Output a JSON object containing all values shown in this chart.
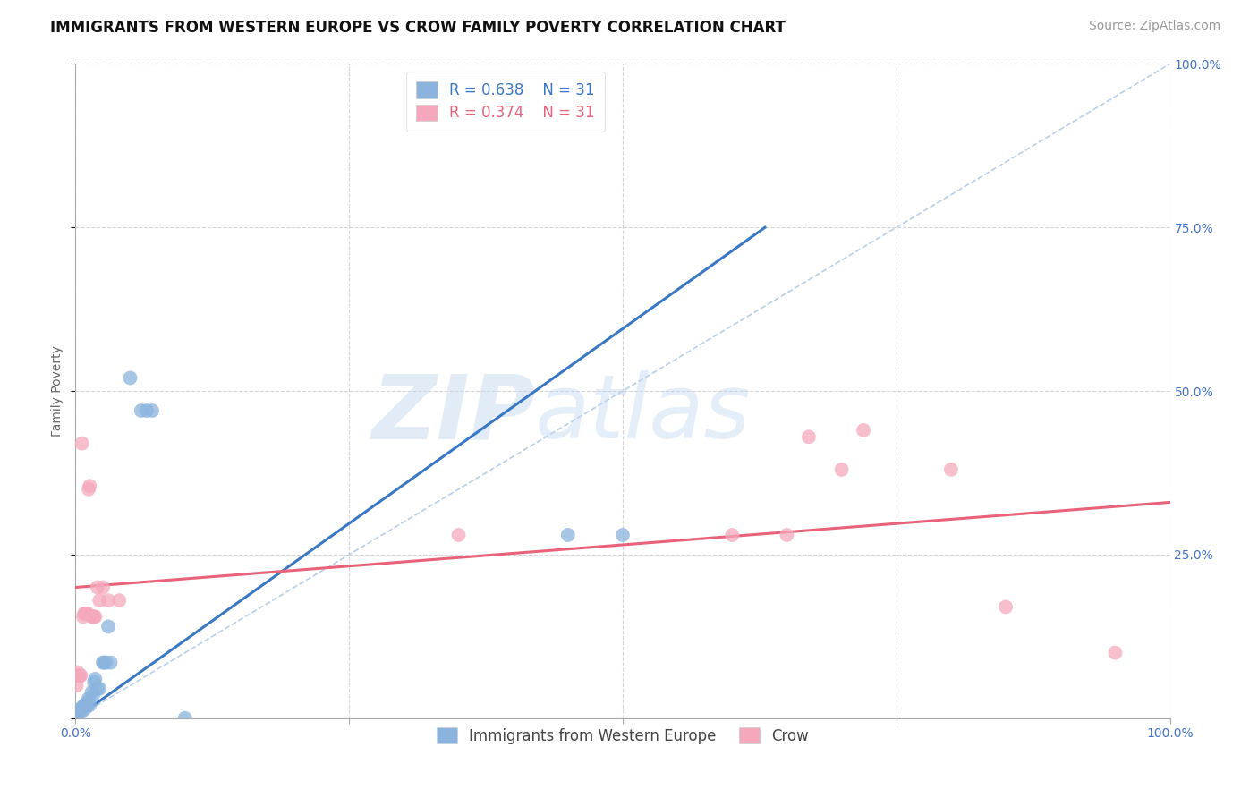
{
  "title": "IMMIGRANTS FROM WESTERN EUROPE VS CROW FAMILY POVERTY CORRELATION CHART",
  "source": "Source: ZipAtlas.com",
  "ylabel": "Family Poverty",
  "legend_labels": [
    "Immigrants from Western Europe",
    "Crow"
  ],
  "legend_r_n": [
    {
      "r": "0.638",
      "n": "31"
    },
    {
      "r": "0.374",
      "n": "31"
    }
  ],
  "blue_scatter": [
    [
      0.001,
      0.005
    ],
    [
      0.002,
      0.01
    ],
    [
      0.003,
      0.008
    ],
    [
      0.004,
      0.012
    ],
    [
      0.005,
      0.015
    ],
    [
      0.006,
      0.01
    ],
    [
      0.007,
      0.018
    ],
    [
      0.008,
      0.02
    ],
    [
      0.009,
      0.015
    ],
    [
      0.01,
      0.02
    ],
    [
      0.011,
      0.025
    ],
    [
      0.012,
      0.03
    ],
    [
      0.013,
      0.02
    ],
    [
      0.015,
      0.04
    ],
    [
      0.016,
      0.035
    ],
    [
      0.017,
      0.055
    ],
    [
      0.018,
      0.06
    ],
    [
      0.02,
      0.045
    ],
    [
      0.022,
      0.045
    ],
    [
      0.025,
      0.085
    ],
    [
      0.026,
      0.085
    ],
    [
      0.028,
      0.085
    ],
    [
      0.03,
      0.14
    ],
    [
      0.032,
      0.085
    ],
    [
      0.05,
      0.52
    ],
    [
      0.06,
      0.47
    ],
    [
      0.065,
      0.47
    ],
    [
      0.07,
      0.47
    ],
    [
      0.1,
      0.0
    ],
    [
      0.45,
      0.28
    ],
    [
      0.5,
      0.28
    ]
  ],
  "pink_scatter": [
    [
      0.001,
      0.05
    ],
    [
      0.002,
      0.07
    ],
    [
      0.003,
      0.065
    ],
    [
      0.004,
      0.065
    ],
    [
      0.005,
      0.065
    ],
    [
      0.006,
      0.42
    ],
    [
      0.007,
      0.155
    ],
    [
      0.008,
      0.16
    ],
    [
      0.009,
      0.16
    ],
    [
      0.01,
      0.16
    ],
    [
      0.011,
      0.16
    ],
    [
      0.012,
      0.35
    ],
    [
      0.013,
      0.355
    ],
    [
      0.015,
      0.155
    ],
    [
      0.016,
      0.155
    ],
    [
      0.017,
      0.155
    ],
    [
      0.018,
      0.155
    ],
    [
      0.02,
      0.2
    ],
    [
      0.022,
      0.18
    ],
    [
      0.025,
      0.2
    ],
    [
      0.03,
      0.18
    ],
    [
      0.04,
      0.18
    ],
    [
      0.35,
      0.28
    ],
    [
      0.6,
      0.28
    ],
    [
      0.65,
      0.28
    ],
    [
      0.67,
      0.43
    ],
    [
      0.7,
      0.38
    ],
    [
      0.72,
      0.44
    ],
    [
      0.8,
      0.38
    ],
    [
      0.85,
      0.17
    ],
    [
      0.95,
      0.1
    ]
  ],
  "blue_line": {
    "x0": 0.0,
    "y0": 0.0,
    "x1": 0.63,
    "y1": 0.75
  },
  "pink_line": {
    "x0": 0.0,
    "y0": 0.2,
    "x1": 1.0,
    "y1": 0.33
  },
  "diagonal_line": {
    "x0": 0.0,
    "y0": 0.0,
    "x1": 1.0,
    "y1": 1.0
  },
  "xlim": [
    0.0,
    1.0
  ],
  "ylim": [
    0.0,
    1.0
  ],
  "x_ticks": [
    0.0,
    0.25,
    0.5,
    0.75,
    1.0
  ],
  "x_tick_labels": [
    "0.0%",
    "",
    "",
    "",
    "100.0%"
  ],
  "y_ticks": [
    0.0,
    0.25,
    0.5,
    0.75,
    1.0
  ],
  "y_tick_labels": [
    "",
    "25.0%",
    "50.0%",
    "75.0%",
    "100.0%"
  ],
  "scatter_blue_color": "#8ab4dd",
  "scatter_pink_color": "#f5a8bc",
  "line_blue_color": "#3b78c4",
  "line_pink_color": "#e8637a",
  "diagonal_color": "#b8cfe8",
  "grid_color": "#d0d0d0",
  "background_color": "#ffffff",
  "watermark_zip": "ZIP",
  "watermark_atlas": "atlas",
  "tick_color": "#4472c4",
  "title_fontsize": 12,
  "source_fontsize": 10,
  "ylabel_fontsize": 10,
  "tick_fontsize": 10,
  "legend_fontsize": 12
}
